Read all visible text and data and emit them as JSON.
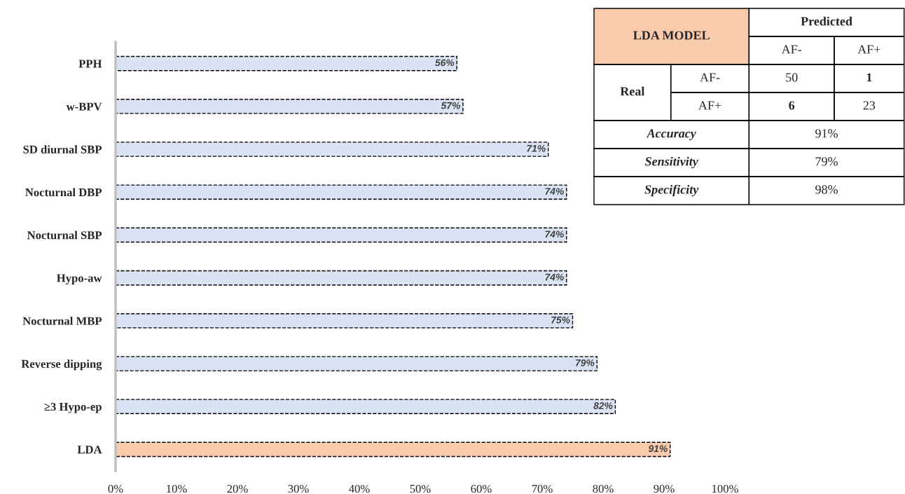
{
  "chart_data": [
    {
      "type": "bar",
      "orientation": "horizontal",
      "categories": [
        "PPH",
        "w-BPV",
        "SD diurnal SBP",
        "Nocturnal DBP",
        "Nocturnal SBP",
        "Hypo-aw",
        "Nocturnal MBP",
        "Reverse dipping",
        "≥3 Hypo-ep",
        "LDA"
      ],
      "values": [
        56,
        57,
        71,
        74,
        74,
        74,
        75,
        79,
        82,
        91
      ],
      "colors": [
        "#dae3f3",
        "#dae3f3",
        "#dae3f3",
        "#dae3f3",
        "#dae3f3",
        "#dae3f3",
        "#dae3f3",
        "#dae3f3",
        "#dae3f3",
        "#f8cbad"
      ],
      "value_labels": [
        "56%",
        "57%",
        "71%",
        "74%",
        "74%",
        "74%",
        "75%",
        "79%",
        "82%",
        "91%"
      ],
      "line_style": "dashed",
      "xlim": [
        0,
        100
      ],
      "xticks": [
        {
          "value": 0,
          "label": "0%"
        },
        {
          "value": 10,
          "label": "10%"
        },
        {
          "value": 20,
          "label": "20%"
        },
        {
          "value": 30,
          "label": "30%"
        },
        {
          "value": 40,
          "label": "40%"
        },
        {
          "value": 50,
          "label": "50%"
        },
        {
          "value": 60,
          "label": "60%"
        },
        {
          "value": 70,
          "label": "70%"
        },
        {
          "value": 80,
          "label": "80%"
        },
        {
          "value": 90,
          "label": "90%"
        },
        {
          "value": 100,
          "label": "100%"
        }
      ],
      "grid": false
    },
    {
      "type": "other",
      "annotations": [
        "LDA MODEL",
        "Predicted",
        "AF-",
        "AF+",
        "Real",
        "AF-",
        "50",
        "1",
        "AF+",
        "6",
        "23",
        "Accuracy",
        "91%",
        "Sensitivity",
        "79%",
        "Specificity",
        "98%"
      ]
    }
  ]
}
